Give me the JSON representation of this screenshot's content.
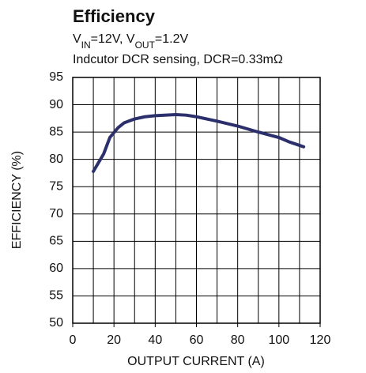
{
  "chart_data": {
    "type": "line",
    "title": "Efficiency",
    "subtitle": [
      {
        "text": "V"
      },
      {
        "text": "IN",
        "sub": true
      },
      {
        "text": "=12V, V"
      },
      {
        "text": "OUT",
        "sub": true
      },
      {
        "text": "=1.2V"
      }
    ],
    "annotation": "Indcutor DCR sensing, DCR=0.33mΩ",
    "x_label": "OUTPUT CURRENT (A)",
    "y_label": "EFFICIENCY (%)",
    "x": [
      10,
      15,
      18,
      22,
      25,
      30,
      35,
      40,
      50,
      55,
      60,
      70,
      80,
      90,
      100,
      105,
      112
    ],
    "series": [
      {
        "color": "#2b2f6b",
        "values": [
          77.8,
          81,
          84,
          85.8,
          86.7,
          87.4,
          87.8,
          88,
          88.2,
          88.1,
          87.8,
          87,
          86.1,
          85,
          84,
          83.2,
          82.3
        ]
      }
    ],
    "xlim": [
      0,
      120
    ],
    "xticks": [
      0,
      20,
      40,
      60,
      80,
      100,
      120
    ],
    "ylim": [
      50,
      95
    ],
    "yticks": [
      50,
      55,
      60,
      65,
      70,
      75,
      80,
      85,
      90,
      95
    ],
    "xgrid_step": 10,
    "grid": true
  }
}
